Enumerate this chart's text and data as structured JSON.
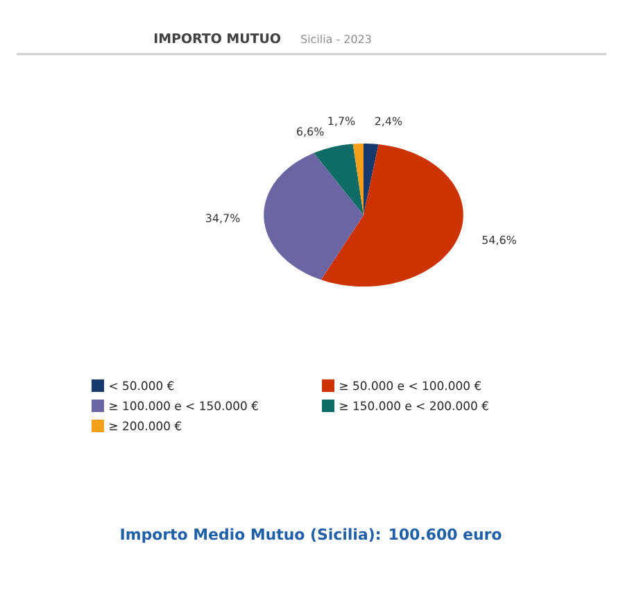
{
  "chart_data": {
    "type": "pie",
    "title": "IMPORTO MUTUO",
    "subtitle": "Sicilia - 2023",
    "categories": [
      "< 50.000 €",
      "≥ 50.000 e < 100.000 €",
      "≥ 100.000 e < 150.000 €",
      "≥ 150.000 e < 200.000 €",
      "≥ 200.000 €"
    ],
    "values": [
      2.4,
      54.6,
      34.7,
      6.6,
      1.7
    ],
    "colors": [
      "#163a6e",
      "#cc3300",
      "#6b66a3",
      "#0f6b66",
      "#f5a01a"
    ],
    "value_labels": [
      "2,4%",
      "54,6%",
      "34,7%",
      "6,6%",
      "1,7%"
    ],
    "legend": "bottom",
    "annotations": [
      "Importo Medio Mutuo (Sicilia): 100.600 euro"
    ]
  }
}
